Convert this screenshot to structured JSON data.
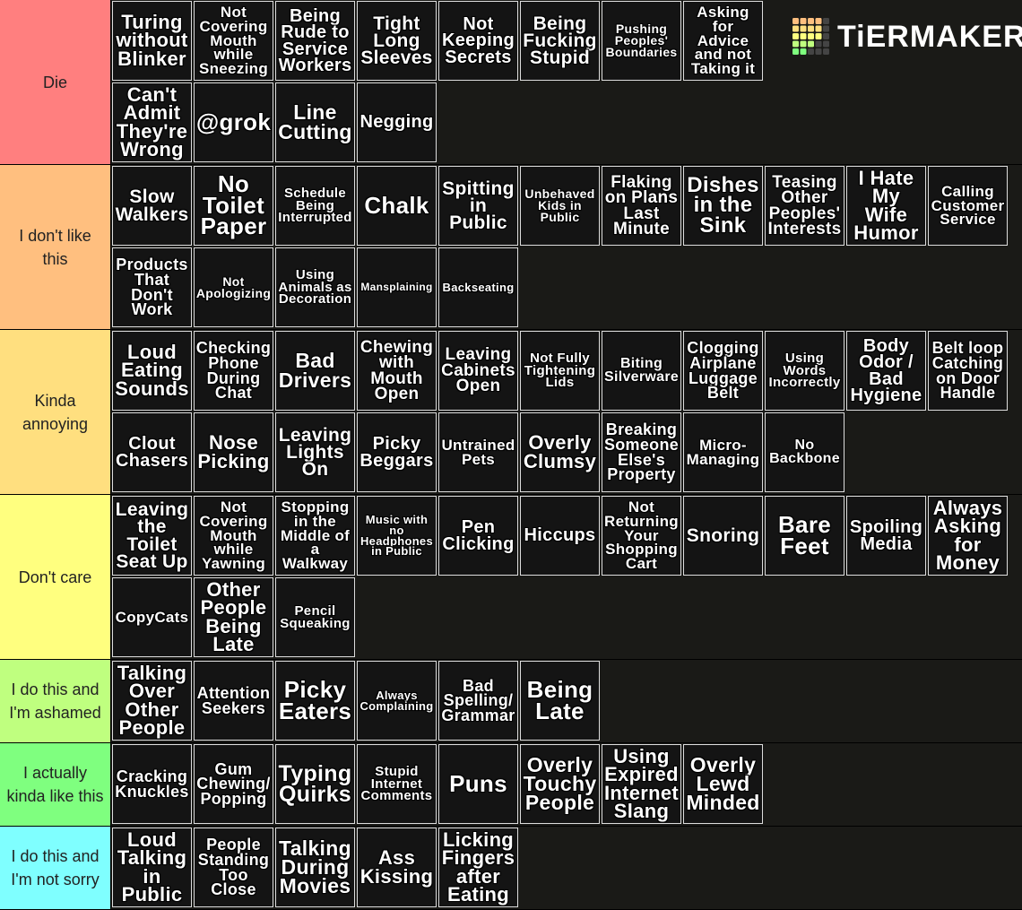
{
  "logo": "TiERMAKER",
  "tiers": [
    {
      "label": "Die",
      "color": "#ff7f7f",
      "per_row": 8,
      "items": [
        "Turing without Blinker",
        "Not Covering Mouth while Sneezing",
        "Being Rude to Service Workers",
        "Tight Long Sleeves",
        "Not Keeping Secrets",
        "Being Fucking Stupid",
        "Pushing Peoples' Boundaries",
        "Asking for Advice and not Taking it",
        "Can't Admit They're Wrong",
        "@grok",
        "Line Cutting",
        "Negging"
      ]
    },
    {
      "label": "I don't like this",
      "color": "#ffbf7f",
      "per_row": 11,
      "items": [
        "Slow Walkers",
        "No Toilet Paper",
        "Schedule Being Interrupted",
        "Chalk",
        "Spitting in Public",
        "Unbehaved Kids in Public",
        "Flaking on Plans Last Minute",
        "Dishes in the Sink",
        "Teasing Other Peoples' Interests",
        "I Hate My Wife Humor",
        "Calling Customer Service",
        "Products That Don't Work",
        "Not Apologizing",
        "Using Animals as Decoration",
        "Mansplaining",
        "Backseating"
      ]
    },
    {
      "label": "Kinda annoying",
      "color": "#ffdf7f",
      "per_row": 11,
      "items": [
        "Loud Eating Sounds",
        "Checking Phone During Chat",
        "Bad Drivers",
        "Chewing with Mouth Open",
        "Leaving Cabinets Open",
        "Not Fully Tightening Lids",
        "Biting Silverware",
        "Clogging Airplane Luggage Belt",
        "Using Words Incorrectly",
        "Body Odor / Bad Hygiene",
        "Belt loop Catching on Door Handle",
        "Clout Chasers",
        "Nose Picking",
        "Leaving Lights On",
        "Picky Beggars",
        "Untrained Pets",
        "Overly Clumsy",
        "Breaking Someone Else's Property",
        "Micro-Managing",
        "No Backbone"
      ]
    },
    {
      "label": "Don't care",
      "color": "#ffff7f",
      "per_row": 11,
      "items": [
        "Leaving the Toilet Seat Up",
        "Not Covering Mouth while Yawning",
        "Stopping in the Middle of a Walkway",
        "Music with no Headphones in Public",
        "Pen Clicking",
        "Hiccups",
        "Not Returning Your Shopping Cart",
        "Snoring",
        "Bare Feet",
        "Spoiling Media",
        "Always Asking for Money",
        "CopyCats",
        "Other People Being Late",
        "Pencil Squeaking"
      ]
    },
    {
      "label": "I do this and I'm ashamed",
      "color": "#bfff7f",
      "per_row": 11,
      "items": [
        "Talking Over Other People",
        "Attention Seekers",
        "Picky Eaters",
        "Always Complaining",
        "Bad Spelling/ Grammar",
        "Being Late"
      ]
    },
    {
      "label": "I actually kinda like this",
      "color": "#7fff7f",
      "per_row": 11,
      "items": [
        "Cracking Knuckles",
        "Gum Chewing/ Popping",
        "Typing Quirks",
        "Stupid Internet Comments",
        "Puns",
        "Overly Touchy People",
        "Using Expired Internet Slang",
        "Overly Lewd Minded"
      ]
    },
    {
      "label": "I do this and I'm not sorry",
      "color": "#7fffff",
      "per_row": 11,
      "items": [
        "Loud Talking in Public",
        "People Standing Too Close",
        "Talking During Movies",
        "Ass Kissing",
        "Licking Fingers after Eating"
      ]
    }
  ]
}
